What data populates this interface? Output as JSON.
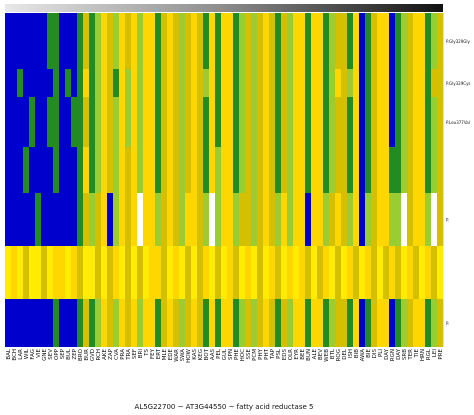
{
  "chart_data": {
    "type": "heatmap",
    "title": "",
    "xlabel": "AL5G22700 ~ AT3G44550 ~ fatty acid reductase 5",
    "ylabel": "",
    "columns": [
      "BAL",
      "BCH",
      "LAR",
      "WIL",
      "FAG",
      "VIE",
      "GNE",
      "SEV",
      "OPP",
      "SEP",
      "BUL",
      "ZEP",
      "BRO",
      "BUR",
      "GVD",
      "RCH",
      "AKE",
      "ZAP",
      "CVA",
      "PRA",
      "TRA",
      "SEF",
      "BRI",
      "TS",
      "FEY",
      "ERT",
      "MLE",
      "EDE",
      "WAR",
      "SWA",
      "HOW",
      "KAS",
      "KEG",
      "BOT",
      "AAS",
      "PEL",
      "GUL",
      "SPN",
      "PHE",
      "HOC",
      "SSE",
      "PCM",
      "PHY",
      "PHT",
      "TAP",
      "PSL",
      "EDS",
      "OLR",
      "EYR",
      "BEE",
      "BUN",
      "ALE",
      "BEV",
      "WEB",
      "BTL",
      "ROG",
      "DEL",
      "ISH",
      "BIB",
      "AWA",
      "BIE",
      "DIS",
      "PLI",
      "DAY",
      "RGN",
      "DAY",
      "SRB",
      "TER",
      "TIE",
      "HRN",
      "RGL",
      "LEI",
      "PRE"
    ],
    "rows": [
      "P.Gly329Gly",
      "P.Gly329Cys",
      "P.Leu377Val",
      "",
      "P.",
      "",
      "P."
    ],
    "row_heights": [
      56,
      28,
      50,
      46,
      53,
      53,
      48
    ],
    "color_scale": {
      "0": "#0000cd",
      "1": "#228b22",
      "2": "#9acd32",
      "3": "#d4c000",
      "4": "#ffd700",
      "5": "#ffec00",
      "6": "#ffffff"
    },
    "values": [
      [
        0,
        0,
        0,
        0,
        0,
        0,
        0,
        1,
        1,
        0,
        0,
        0,
        1,
        3,
        1,
        2,
        4,
        3,
        2,
        4,
        3,
        4,
        2,
        4,
        4,
        1,
        3,
        4,
        3,
        2,
        3,
        4,
        3,
        1,
        4,
        1,
        4,
        4,
        1,
        2,
        3,
        2,
        3,
        4,
        3,
        1,
        3,
        2,
        4,
        4,
        1,
        4,
        4,
        1,
        2,
        3,
        3,
        1,
        4,
        0,
        1,
        3,
        4,
        4,
        0,
        1,
        2,
        3,
        4,
        4,
        1,
        2,
        3
      ],
      [
        0,
        0,
        1,
        0,
        0,
        0,
        0,
        0,
        1,
        0,
        1,
        0,
        1,
        4,
        1,
        2,
        4,
        3,
        1,
        4,
        2,
        4,
        2,
        4,
        4,
        1,
        3,
        4,
        3,
        2,
        3,
        4,
        3,
        2,
        4,
        1,
        4,
        4,
        1,
        2,
        3,
        2,
        3,
        4,
        3,
        1,
        3,
        2,
        4,
        4,
        1,
        4,
        4,
        1,
        2,
        4,
        3,
        2,
        4,
        0,
        1,
        3,
        4,
        4,
        0,
        1,
        2,
        3,
        4,
        4,
        1,
        3,
        3
      ],
      [
        0,
        0,
        0,
        0,
        1,
        0,
        0,
        1,
        1,
        0,
        0,
        1,
        1,
        3,
        1,
        2,
        4,
        3,
        2,
        4,
        2,
        4,
        2,
        4,
        4,
        1,
        3,
        4,
        3,
        2,
        3,
        4,
        3,
        1,
        4,
        1,
        4,
        4,
        1,
        2,
        3,
        2,
        3,
        4,
        3,
        1,
        3,
        2,
        4,
        4,
        1,
        4,
        4,
        1,
        2,
        3,
        3,
        1,
        4,
        0,
        1,
        3,
        4,
        4,
        0,
        1,
        2,
        3,
        4,
        4,
        1,
        2,
        3
      ],
      [
        0,
        0,
        0,
        1,
        0,
        0,
        0,
        0,
        1,
        0,
        0,
        0,
        1,
        4,
        1,
        2,
        4,
        3,
        2,
        4,
        3,
        4,
        2,
        4,
        4,
        1,
        3,
        4,
        3,
        2,
        3,
        4,
        3,
        1,
        4,
        2,
        4,
        4,
        1,
        2,
        3,
        2,
        3,
        4,
        3,
        1,
        3,
        2,
        4,
        4,
        1,
        4,
        4,
        1,
        2,
        3,
        3,
        1,
        4,
        0,
        1,
        3,
        4,
        4,
        1,
        1,
        2,
        3,
        4,
        4,
        1,
        2,
        3
      ],
      [
        0,
        0,
        0,
        0,
        0,
        1,
        0,
        0,
        0,
        0,
        0,
        0,
        1,
        3,
        2,
        3,
        4,
        0,
        2,
        4,
        3,
        4,
        6,
        4,
        4,
        2,
        3,
        4,
        3,
        2,
        4,
        4,
        3,
        2,
        6,
        2,
        4,
        4,
        2,
        3,
        3,
        2,
        3,
        4,
        3,
        2,
        4,
        2,
        4,
        4,
        0,
        4,
        4,
        2,
        3,
        4,
        3,
        2,
        4,
        0,
        2,
        3,
        4,
        4,
        2,
        2,
        6,
        3,
        4,
        4,
        2,
        6,
        3
      ],
      [
        5,
        4,
        5,
        3,
        5,
        5,
        3,
        5,
        4,
        4,
        5,
        4,
        3,
        5,
        5,
        3,
        5,
        3,
        4,
        5,
        3,
        5,
        3,
        5,
        4,
        4,
        3,
        5,
        4,
        5,
        3,
        5,
        3,
        4,
        5,
        3,
        5,
        4,
        3,
        5,
        4,
        5,
        3,
        5,
        4,
        3,
        5,
        4,
        5,
        4,
        3,
        5,
        3,
        4,
        5,
        3,
        5,
        4,
        3,
        5,
        4,
        3,
        5,
        3,
        4,
        3,
        5,
        4,
        3,
        5,
        4,
        3,
        5
      ],
      [
        0,
        0,
        0,
        0,
        0,
        0,
        0,
        0,
        1,
        0,
        0,
        0,
        1,
        3,
        1,
        2,
        4,
        3,
        2,
        4,
        3,
        4,
        2,
        4,
        4,
        1,
        3,
        4,
        3,
        2,
        3,
        4,
        3,
        1,
        4,
        1,
        4,
        4,
        1,
        2,
        3,
        2,
        3,
        4,
        3,
        1,
        3,
        2,
        4,
        4,
        1,
        4,
        4,
        1,
        2,
        3,
        3,
        1,
        4,
        0,
        1,
        3,
        4,
        4,
        0,
        1,
        2,
        3,
        4,
        4,
        1,
        2,
        3
      ]
    ]
  }
}
